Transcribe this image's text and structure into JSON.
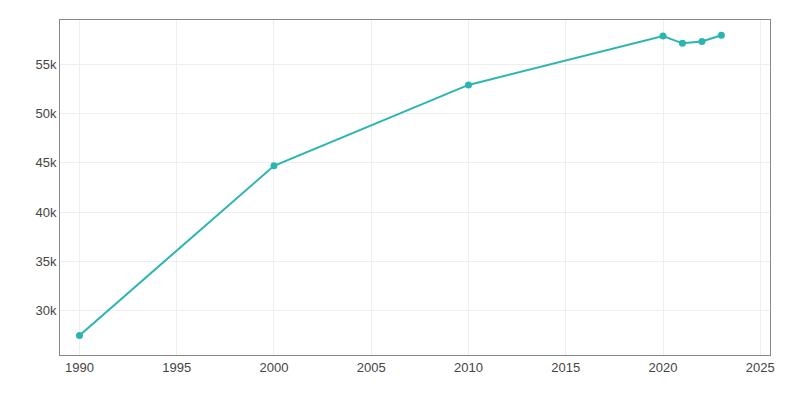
{
  "chart_data": {
    "type": "line",
    "x": [
      1990,
      2000,
      2010,
      2020,
      2021,
      2022,
      2023
    ],
    "values": [
      27485,
      44700,
      52909,
      57868,
      57132,
      57328,
      57953
    ],
    "color": "#2bb5b0",
    "marker": "circle",
    "xlim": [
      1989,
      2025.5
    ],
    "ylim": [
      25500,
      59500
    ],
    "xticks": [
      1990,
      1995,
      2000,
      2005,
      2010,
      2015,
      2020,
      2025
    ],
    "yticks": [
      {
        "value": 30000,
        "label": "30k"
      },
      {
        "value": 35000,
        "label": "35k"
      },
      {
        "value": 40000,
        "label": "40k"
      },
      {
        "value": 45000,
        "label": "45k"
      },
      {
        "value": 50000,
        "label": "50k"
      },
      {
        "value": 55000,
        "label": "55k"
      }
    ],
    "grid": true
  }
}
